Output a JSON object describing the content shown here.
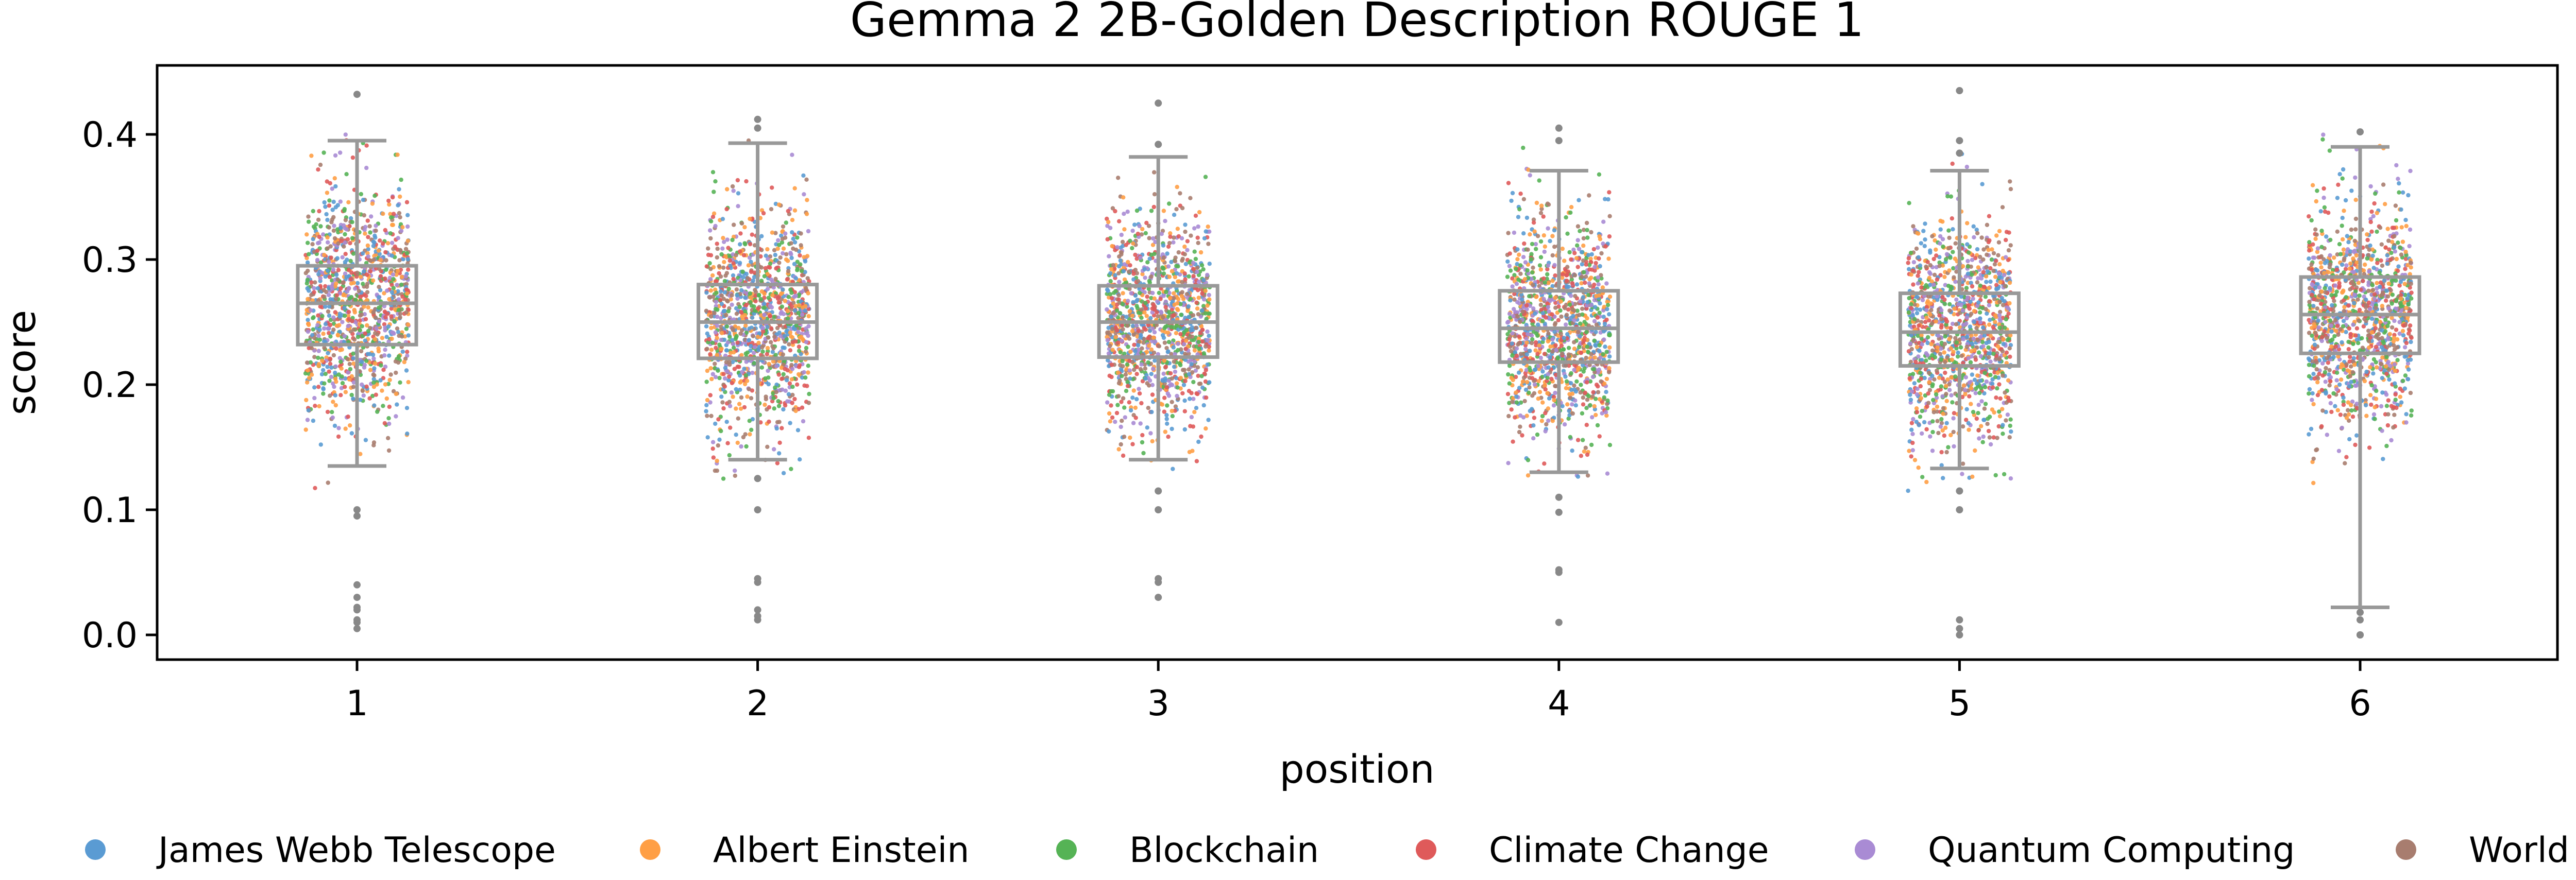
{
  "chart_data": {
    "type": "box-strip",
    "title": "Gemma 2 2B-Golden Description ROUGE 1",
    "xlabel": "position",
    "ylabel": "score",
    "categories": [
      "1",
      "2",
      "3",
      "4",
      "5",
      "6"
    ],
    "ylim": [
      -0.02,
      0.45
    ],
    "yticks": [
      0.0,
      0.1,
      0.2,
      0.3,
      0.4
    ],
    "ytick_labels": [
      "0.0",
      "0.1",
      "0.2",
      "0.3",
      "0.4"
    ],
    "grid": false,
    "legend_position": "bottom",
    "box_color": "#999999",
    "boxes": [
      {
        "position": "1",
        "whisker_low": 0.135,
        "q1": 0.232,
        "median": 0.265,
        "q3": 0.295,
        "whisker_high": 0.395,
        "outliers": [
          0.432,
          0.1,
          0.095,
          0.04,
          0.03,
          0.022,
          0.02,
          0.012,
          0.01,
          0.005
        ]
      },
      {
        "position": "2",
        "whisker_low": 0.14,
        "q1": 0.221,
        "median": 0.25,
        "q3": 0.28,
        "whisker_high": 0.393,
        "outliers": [
          0.412,
          0.405,
          0.125,
          0.1,
          0.045,
          0.042,
          0.02,
          0.015,
          0.012
        ]
      },
      {
        "position": "3",
        "whisker_low": 0.14,
        "q1": 0.222,
        "median": 0.25,
        "q3": 0.279,
        "whisker_high": 0.382,
        "outliers": [
          0.425,
          0.392,
          0.115,
          0.1,
          0.045,
          0.042,
          0.03
        ]
      },
      {
        "position": "4",
        "whisker_low": 0.13,
        "q1": 0.218,
        "median": 0.245,
        "q3": 0.275,
        "whisker_high": 0.371,
        "outliers": [
          0.405,
          0.395,
          0.11,
          0.098,
          0.052,
          0.05,
          0.01
        ]
      },
      {
        "position": "5",
        "whisker_low": 0.133,
        "q1": 0.215,
        "median": 0.242,
        "q3": 0.273,
        "whisker_high": 0.371,
        "outliers": [
          0.435,
          0.395,
          0.385,
          0.115,
          0.1,
          0.012,
          0.005,
          0.0
        ]
      },
      {
        "position": "6",
        "whisker_low": 0.022,
        "q1": 0.225,
        "median": 0.256,
        "q3": 0.286,
        "whisker_high": 0.39,
        "outliers": [
          0.402,
          0.018,
          0.012,
          0.0,
          0.0,
          0.0
        ]
      }
    ],
    "series": [
      {
        "name": "James Webb Telescope",
        "color": "#5a9bd3"
      },
      {
        "name": "Albert Einstein",
        "color": "#ff9f45"
      },
      {
        "name": "Blockchain",
        "color": "#55b355"
      },
      {
        "name": "Climate Change",
        "color": "#df5a5a"
      },
      {
        "name": "Quantum Computing",
        "color": "#a98bd4"
      },
      {
        "name": "World War II",
        "color": "#a87d6f"
      }
    ]
  }
}
